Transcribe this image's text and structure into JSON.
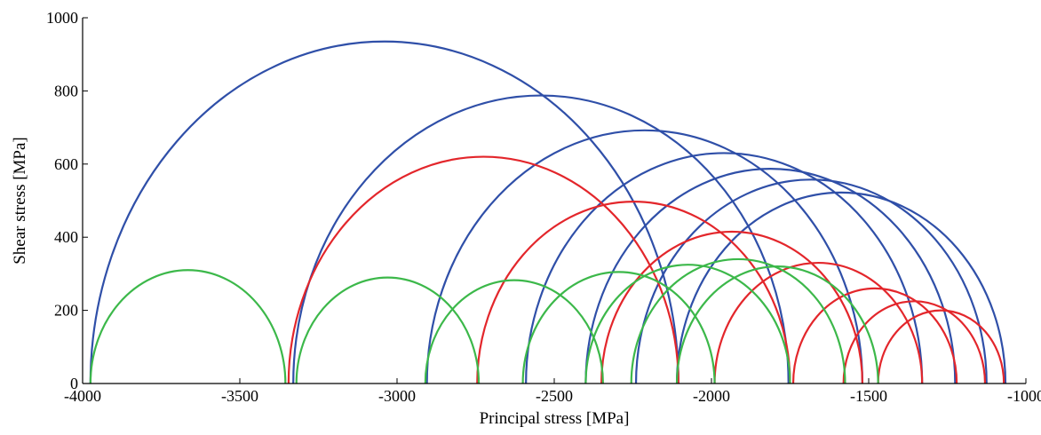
{
  "chart_data": {
    "type": "line",
    "title": "",
    "xlabel": "Principal stress  [MPa]",
    "ylabel": "Shear stress [MPa]",
    "xlim": [
      -4000,
      -1000
    ],
    "ylim": [
      0,
      1000
    ],
    "xticks": [
      -4000,
      -3500,
      -3000,
      -2500,
      -2000,
      -1500,
      -1000
    ],
    "yticks": [
      0,
      200,
      400,
      600,
      800,
      1000
    ],
    "grid": false,
    "legend": "none",
    "colors": {
      "blue": "#2f4fa8",
      "red": "#e3262b",
      "green": "#3cb84a"
    },
    "series": [
      {
        "color": "blue",
        "circles": [
          {
            "sigma3": -3975,
            "sigma1": -2105
          },
          {
            "sigma3": -3330,
            "sigma1": -1755
          },
          {
            "sigma3": -2905,
            "sigma1": -1520
          },
          {
            "sigma3": -2590,
            "sigma1": -1330
          },
          {
            "sigma3": -2400,
            "sigma1": -1225
          },
          {
            "sigma3": -2240,
            "sigma1": -1125
          },
          {
            "sigma3": -2110,
            "sigma1": -1065
          }
        ]
      },
      {
        "color": "red",
        "circles": [
          {
            "sigma3": -3345,
            "sigma1": -2105
          },
          {
            "sigma3": -2745,
            "sigma1": -1750
          },
          {
            "sigma3": -2350,
            "sigma1": -1520
          },
          {
            "sigma3": -1990,
            "sigma1": -1330
          },
          {
            "sigma3": -1740,
            "sigma1": -1220
          },
          {
            "sigma3": -1580,
            "sigma1": -1130
          },
          {
            "sigma3": -1470,
            "sigma1": -1070
          }
        ]
      },
      {
        "color": "green",
        "circles": [
          {
            "sigma3": -3975,
            "sigma1": -3355
          },
          {
            "sigma3": -3320,
            "sigma1": -2740
          },
          {
            "sigma3": -2910,
            "sigma1": -2345
          },
          {
            "sigma3": -2600,
            "sigma1": -1990
          },
          {
            "sigma3": -2400,
            "sigma1": -1750
          },
          {
            "sigma3": -2255,
            "sigma1": -1575
          },
          {
            "sigma3": -2110,
            "sigma1": -1470
          }
        ]
      }
    ]
  }
}
